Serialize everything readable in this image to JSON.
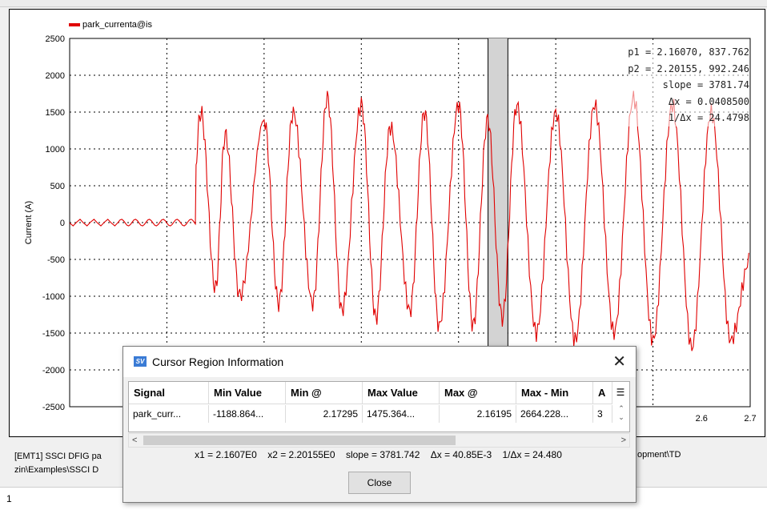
{
  "chart_data": {
    "type": "line",
    "series": [
      {
        "name": "park_currenta@is",
        "color": "#e00000"
      }
    ],
    "ylabel": "Current (A)",
    "ylim": [
      -2500,
      2500
    ],
    "xlim": [
      1.3,
      2.7
    ],
    "yticks": [
      "2500",
      "2000",
      "1500",
      "1000",
      "500",
      "0",
      "-500",
      "-1000",
      "-1500",
      "-2000",
      "-2500"
    ],
    "xticks": [
      "2.6",
      "2.7"
    ],
    "grid": true,
    "cursor_x1": 2.1607,
    "cursor_x2": 2.20155,
    "samples_x": [
      1.3,
      1.4,
      1.45,
      1.5,
      1.55,
      1.57,
      1.6,
      1.62,
      1.65,
      1.7,
      1.73,
      1.76,
      1.8,
      1.83,
      1.86,
      1.9,
      1.93,
      1.96,
      2.0,
      2.03,
      2.06,
      2.1,
      2.13,
      2.16,
      2.19,
      2.22,
      2.26,
      2.3,
      2.34,
      2.38,
      2.42,
      2.46,
      2.5,
      2.54,
      2.58,
      2.62,
      2.66,
      2.7
    ],
    "samples_y": [
      0,
      40,
      -40,
      40,
      0,
      1500,
      -900,
      1200,
      -1000,
      1400,
      -1100,
      1500,
      -1100,
      1700,
      -1200,
      1600,
      -1300,
      1300,
      -1200,
      1500,
      -1400,
      1600,
      -1400,
      1400,
      -1300,
      1600,
      -1500,
      1500,
      -1600,
      1600,
      -1500,
      1700,
      -1600,
      1600,
      -1700,
      1500,
      -1600,
      -500
    ]
  },
  "legend": {
    "label": "park_currenta@is"
  },
  "cursor_readout": {
    "p1": "p1 = 2.16070, 837.762",
    "p2": "p2 = 2.20155, 992.246",
    "slope": "slope = 3781.74",
    "dx": "Δx = 0.0408500",
    "inv_dx": "1/Δx = 24.4798"
  },
  "info": {
    "line1": "[EMT1] SSCI DFIG pa",
    "line2": "zin\\Examples\\SSCI D",
    "line1_right": "opment\\TD"
  },
  "bottom_tab": {
    "label": "1"
  },
  "dialog": {
    "title": "Cursor Region Information",
    "icon_text": "SV",
    "close_glyph": "✕",
    "columns": [
      "Signal",
      "Min Value",
      "Min @",
      "Max Value",
      "Max @",
      "Max - Min",
      "A"
    ],
    "row": [
      "park_curr...",
      "-1188.864...",
      "2.17295",
      "1475.364...",
      "2.16195",
      "2664.228...",
      "3"
    ],
    "status": {
      "x1": "x1 = 2.1607E0",
      "x2": "x2 = 2.20155E0",
      "slope": "slope = 3781.742",
      "dx": "Δx = 40.85E-3",
      "inv_dx": "1/Δx = 24.480"
    },
    "close_button": "Close"
  }
}
